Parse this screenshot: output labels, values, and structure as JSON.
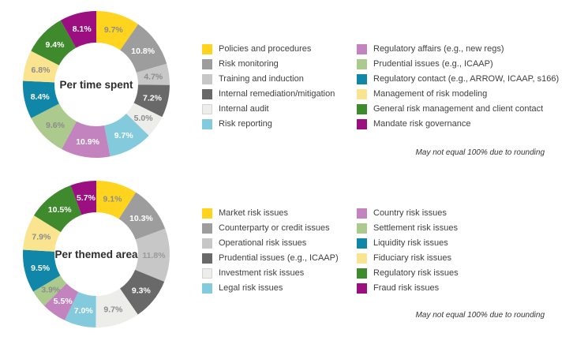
{
  "chart_data": [
    {
      "type": "pie",
      "donut": true,
      "center_label": "Per time spent",
      "note": "May not equal 100% due to rounding",
      "legend_position": "right-two-columns",
      "legend_split": 6,
      "start_angle_deg": 0,
      "direction": "clockwise",
      "segments": [
        {
          "label": "Policies and procedures",
          "value": 9.7,
          "display": "9.7%",
          "color": "#FFD41E",
          "label_color": "#8C8C8C"
        },
        {
          "label": "Risk monitoring",
          "value": 10.8,
          "display": "10.8%",
          "color": "#9D9D9D",
          "label_color": "#FFFFFF"
        },
        {
          "label": "Training and induction",
          "value": 4.7,
          "display": "4.7%",
          "color": "#C7C7C7",
          "label_color": "#8C8C8C"
        },
        {
          "label": "Internal remediation/mitigation",
          "value": 7.2,
          "display": "7.2%",
          "color": "#696969",
          "label_color": "#FFFFFF"
        },
        {
          "label": "Internal audit",
          "value": 5.0,
          "display": "5.0%",
          "color": "#EDEDEA",
          "label_color": "#8C8C8C"
        },
        {
          "label": "Risk reporting",
          "value": 9.7,
          "display": "9.7%",
          "color": "#82CADC",
          "label_color": "#FFFFFF"
        },
        {
          "label": "Regulatory affairs (e.g., new regs)",
          "value": 10.9,
          "display": "10.9%",
          "color": "#C383BF",
          "label_color": "#FFFFFF"
        },
        {
          "label": "Prudential issues (e.g., ICAAP)",
          "value": 9.6,
          "display": "9.6%",
          "color": "#ACC98E",
          "label_color": "#8C8C8C"
        },
        {
          "label": "Regulatory contact (e.g., ARROW, ICAAP, s166)",
          "value": 8.4,
          "display": "8.4%",
          "color": "#1086A8",
          "label_color": "#FFFFFF"
        },
        {
          "label": "Management of risk modeling",
          "value": 6.8,
          "display": "6.8%",
          "color": "#FAE48F",
          "label_color": "#8C8C8C"
        },
        {
          "label": "General risk management and client contact",
          "value": 9.4,
          "display": "9.4%",
          "color": "#3E8A2C",
          "label_color": "#FFFFFF"
        },
        {
          "label": "Mandate risk governance",
          "value": 8.1,
          "display": "8.1%",
          "color": "#9C0F80",
          "label_color": "#FFFFFF"
        }
      ]
    },
    {
      "type": "pie",
      "donut": true,
      "center_label": "Per themed area",
      "note": "May not equal 100% due to rounding",
      "legend_position": "right-two-columns",
      "legend_split": 6,
      "start_angle_deg": 0,
      "direction": "clockwise",
      "segments": [
        {
          "label": "Market risk issues",
          "value": 9.1,
          "display": "9.1%",
          "color": "#FFD41E",
          "label_color": "#8C8C8C"
        },
        {
          "label": "Counterparty or credit issues",
          "value": 10.3,
          "display": "10.3%",
          "color": "#9D9D9D",
          "label_color": "#FFFFFF"
        },
        {
          "label": "Operational risk issues",
          "value": 11.8,
          "display": "11.8%",
          "color": "#C7C7C7",
          "label_color": "#9A9A9A"
        },
        {
          "label": "Prudential issues (e.g., ICAAP)",
          "value": 9.3,
          "display": "9.3%",
          "color": "#696969",
          "label_color": "#FFFFFF"
        },
        {
          "label": "Investment risk issues",
          "value": 9.7,
          "display": "9.7%",
          "color": "#EDEDEA",
          "label_color": "#8C8C8C"
        },
        {
          "label": "Legal risk issues",
          "value": 7.0,
          "display": "7.0%",
          "color": "#82CADC",
          "label_color": "#FFFFFF"
        },
        {
          "label": "Country risk issues",
          "value": 5.5,
          "display": "5.5%",
          "color": "#C383BF",
          "label_color": "#FFFFFF"
        },
        {
          "label": "Settlement risk issues",
          "value": 3.9,
          "display": "3.9%",
          "color": "#ACC98E",
          "label_color": "#8C8C8C"
        },
        {
          "label": "Liquidity risk issues",
          "value": 9.5,
          "display": "9.5%",
          "color": "#1086A8",
          "label_color": "#FFFFFF"
        },
        {
          "label": "Fiduciary risk issues",
          "value": 7.9,
          "display": "7.9%",
          "color": "#FAE48F",
          "label_color": "#8C8C8C"
        },
        {
          "label": "Regulatory risk issues",
          "value": 10.5,
          "display": "10.5%",
          "color": "#3E8A2C",
          "label_color": "#FFFFFF"
        },
        {
          "label": "Fraud risk issues",
          "value": 5.7,
          "display": "5.7%",
          "color": "#9C0F80",
          "label_color": "#FFFFFF"
        }
      ]
    }
  ]
}
